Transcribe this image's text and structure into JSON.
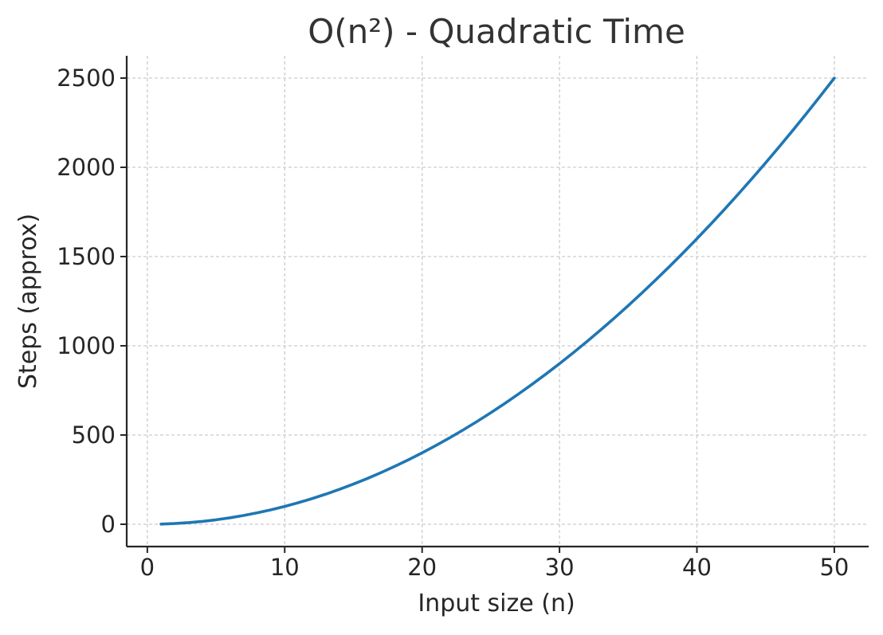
{
  "chart_data": {
    "type": "line",
    "title": "O(n²) - Quadratic Time",
    "xlabel": "Input size (n)",
    "ylabel": "Steps (approx)",
    "xlim": [
      -1.5,
      52.5
    ],
    "ylim": [
      -125,
      2625
    ],
    "xticks": [
      0,
      10,
      20,
      30,
      40,
      50
    ],
    "yticks": [
      0,
      500,
      1000,
      1500,
      2000,
      2500
    ],
    "grid": true,
    "series": [
      {
        "color": "#1f77b4",
        "x": [
          1,
          2,
          3,
          4,
          5,
          6,
          7,
          8,
          9,
          10,
          11,
          12,
          13,
          14,
          15,
          16,
          17,
          18,
          19,
          20,
          21,
          22,
          23,
          24,
          25,
          26,
          27,
          28,
          29,
          30,
          31,
          32,
          33,
          34,
          35,
          36,
          37,
          38,
          39,
          40,
          41,
          42,
          43,
          44,
          45,
          46,
          47,
          48,
          49,
          50
        ],
        "y": [
          1,
          4,
          9,
          16,
          25,
          36,
          49,
          64,
          81,
          100,
          121,
          144,
          169,
          196,
          225,
          256,
          289,
          324,
          361,
          400,
          441,
          484,
          529,
          576,
          625,
          676,
          729,
          784,
          841,
          900,
          961,
          1024,
          1089,
          1156,
          1225,
          1296,
          1369,
          1444,
          1521,
          1600,
          1681,
          1764,
          1849,
          1936,
          2025,
          2116,
          2209,
          2304,
          2401,
          2500
        ]
      }
    ]
  }
}
